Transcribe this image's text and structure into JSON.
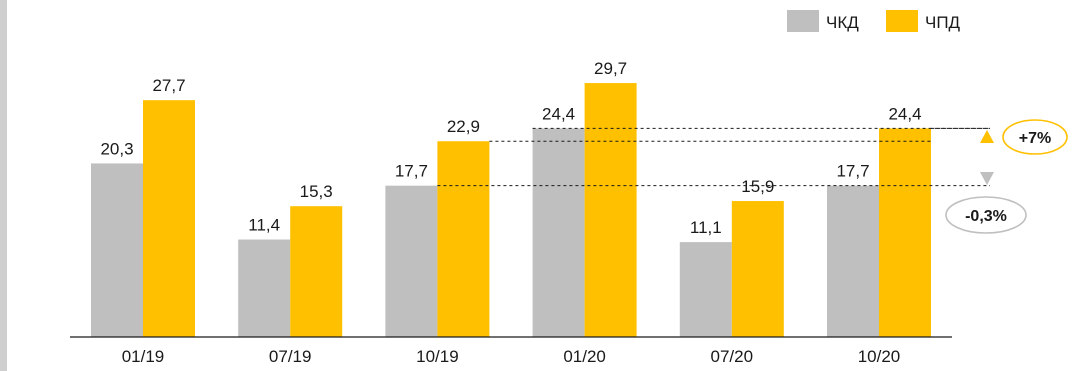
{
  "colors": {
    "chkd": "#bfbfbf",
    "chpd": "#ffc000",
    "axis": "#1a1a1a",
    "grey_marker": "#bfbfbf",
    "gold_marker": "#ffc000"
  },
  "legend": {
    "chkd_label": "ЧКД",
    "chpd_label": "ЧПД"
  },
  "annotations": {
    "up_badge": "+7%",
    "down_badge": "-0,3%"
  },
  "chart_data": {
    "type": "bar",
    "categories": [
      "01/19",
      "07/19",
      "10/19",
      "01/20",
      "07/20",
      "10/20"
    ],
    "series": [
      {
        "name": "ЧКД",
        "values": [
          20.3,
          11.4,
          17.7,
          24.4,
          11.1,
          17.7
        ]
      },
      {
        "name": "ЧПД",
        "values": [
          27.7,
          15.3,
          22.9,
          29.7,
          15.9,
          24.4
        ]
      }
    ],
    "value_labels": {
      "ЧКД": [
        "20,3",
        "11,4",
        "17,7",
        "24,4",
        "11,1",
        "17,7"
      ],
      "ЧПД": [
        "27,7",
        "15,3",
        "22,9",
        "29,7",
        "15,9",
        "24,4"
      ]
    },
    "ylim": [
      0,
      35
    ],
    "grid": false,
    "legend_position": "top-right"
  }
}
